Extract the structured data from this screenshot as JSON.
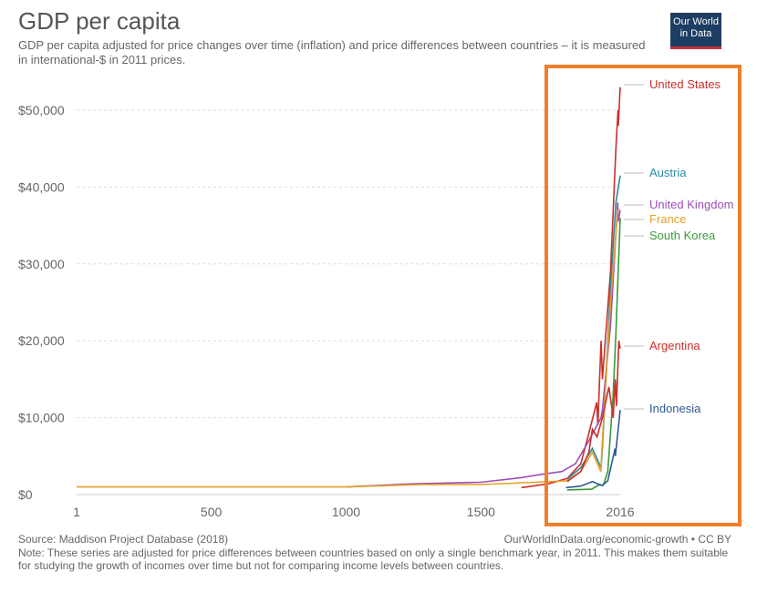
{
  "header": {
    "title": "GDP per capita",
    "subtitle": "GDP per capita adjusted for price changes over time (inflation) and price differences between countries – it is measured in international-$ in 2011 prices.",
    "logo": "Our World in Data"
  },
  "footer": {
    "source": "Source: Maddison Project Database (2018)",
    "url": "OurWorldInData.org/economic-growth • CC BY",
    "note": "Note: These series are adjusted for price differences between countries based on only a single benchmark year, in 2011. This makes them suitable for studying the growth of incomes over time but not for comparing income levels between countries."
  },
  "highlight_color": "#f07f2a",
  "chart_data": {
    "type": "line",
    "title": "GDP per capita",
    "xlabel": "",
    "ylabel": "",
    "xlim": [
      1,
      2016
    ],
    "ylim": [
      0,
      50000
    ],
    "xticks": [
      {
        "v": 1,
        "label": "1"
      },
      {
        "v": 500,
        "label": "500"
      },
      {
        "v": 1000,
        "label": "1000"
      },
      {
        "v": 1500,
        "label": "1500"
      },
      {
        "v": 2016,
        "label": "2016"
      }
    ],
    "yticks": [
      {
        "v": 0,
        "label": "$0"
      },
      {
        "v": 10000,
        "label": "$10,000"
      },
      {
        "v": 20000,
        "label": "$20,000"
      },
      {
        "v": 30000,
        "label": "$30,000"
      },
      {
        "v": 40000,
        "label": "$40,000"
      },
      {
        "v": 50000,
        "label": "$50,000"
      }
    ],
    "series": [
      {
        "name": "United States",
        "color": "#c9302c",
        "labelv": 53000,
        "points": [
          [
            1650,
            900
          ],
          [
            1750,
            1400
          ],
          [
            1820,
            2100
          ],
          [
            1870,
            4000
          ],
          [
            1900,
            8000
          ],
          [
            1929,
            12000
          ],
          [
            1933,
            9000
          ],
          [
            1945,
            20000
          ],
          [
            1950,
            15000
          ],
          [
            1980,
            29000
          ],
          [
            2000,
            45000
          ],
          [
            2008,
            50000
          ],
          [
            2009,
            48000
          ],
          [
            2016,
            53000
          ]
        ]
      },
      {
        "name": "Austria",
        "color": "#2a8a9e",
        "labelv": 41500,
        "points": [
          [
            1820,
            2000
          ],
          [
            1870,
            3500
          ],
          [
            1913,
            6000
          ],
          [
            1945,
            3500
          ],
          [
            1950,
            6000
          ],
          [
            1980,
            27000
          ],
          [
            2000,
            38000
          ],
          [
            2016,
            41500
          ]
        ]
      },
      {
        "name": "United Kingdom",
        "color": "#9b4fb5",
        "labelv": 37500,
        "points": [
          [
            1000,
            1000
          ],
          [
            1250,
            1400
          ],
          [
            1500,
            1600
          ],
          [
            1650,
            2200
          ],
          [
            1700,
            2500
          ],
          [
            1800,
            3000
          ],
          [
            1850,
            4000
          ],
          [
            1900,
            7000
          ],
          [
            1945,
            10000
          ],
          [
            1950,
            11000
          ],
          [
            1980,
            22000
          ],
          [
            2007,
            38000
          ],
          [
            2009,
            35500
          ],
          [
            2016,
            37000
          ]
        ]
      },
      {
        "name": "France",
        "color": "#e3a027",
        "labelv": 36000,
        "points": [
          [
            1,
            1000
          ],
          [
            500,
            1000
          ],
          [
            1000,
            1000
          ],
          [
            1280,
            1300
          ],
          [
            1500,
            1300
          ],
          [
            1700,
            1600
          ],
          [
            1820,
            1800
          ],
          [
            1870,
            3000
          ],
          [
            1913,
            5500
          ],
          [
            1944,
            3000
          ],
          [
            1950,
            7000
          ],
          [
            1980,
            25000
          ],
          [
            2007,
            37000
          ],
          [
            2016,
            37000
          ]
        ]
      },
      {
        "name": "South Korea",
        "color": "#3a9a3a",
        "labelv": 34000,
        "points": [
          [
            1820,
            600
          ],
          [
            1911,
            700
          ],
          [
            1940,
            1300
          ],
          [
            1953,
            1200
          ],
          [
            1970,
            3000
          ],
          [
            1990,
            13000
          ],
          [
            2000,
            21000
          ],
          [
            2016,
            36000
          ]
        ]
      },
      {
        "name": "Argentina",
        "color": "#c9302c",
        "labelv": 19000,
        "points": [
          [
            1820,
            1700
          ],
          [
            1870,
            3000
          ],
          [
            1900,
            5500
          ],
          [
            1913,
            8500
          ],
          [
            1930,
            7500
          ],
          [
            1950,
            10000
          ],
          [
            1974,
            14000
          ],
          [
            1990,
            10000
          ],
          [
            1998,
            15000
          ],
          [
            2002,
            11500
          ],
          [
            2011,
            20000
          ],
          [
            2016,
            19000
          ]
        ]
      },
      {
        "name": "Indonesia",
        "color": "#2f5a95",
        "labelv": 10000,
        "points": [
          [
            1815,
            900
          ],
          [
            1870,
            1100
          ],
          [
            1913,
            1700
          ],
          [
            1945,
            1200
          ],
          [
            1950,
            1200
          ],
          [
            1970,
            1800
          ],
          [
            1997,
            6000
          ],
          [
            1998,
            5000
          ],
          [
            2016,
            11000
          ]
        ]
      }
    ]
  }
}
